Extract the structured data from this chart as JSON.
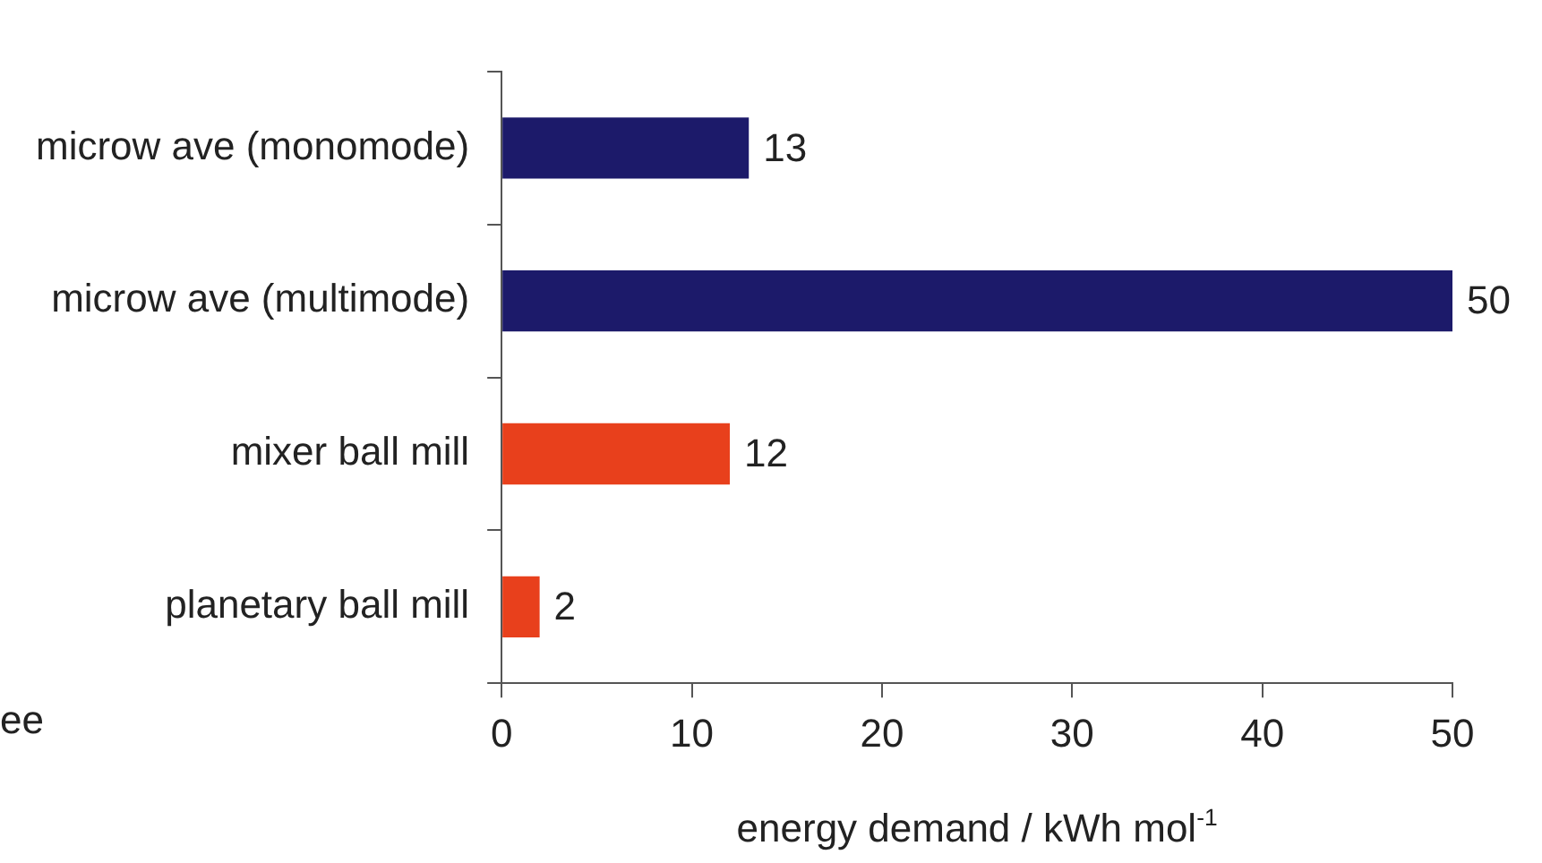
{
  "chart_data": {
    "type": "bar",
    "orientation": "horizontal",
    "categories": [
      "microw ave (monomode)",
      "microw ave (multimode)",
      "mixer ball mill",
      "planetary ball mill"
    ],
    "values": [
      13,
      50,
      12,
      2
    ],
    "colors": [
      "#1c1a6a",
      "#1c1a6a",
      "#e8401c",
      "#e8401c"
    ],
    "xlim": [
      0,
      50
    ],
    "xticks": [
      0,
      10,
      20,
      30,
      40,
      50
    ],
    "xlabel": "energy demand / kWh mol$^{-1}$",
    "data_labels": true,
    "grid": false,
    "legend": false,
    "annotations": [
      "ee"
    ]
  }
}
